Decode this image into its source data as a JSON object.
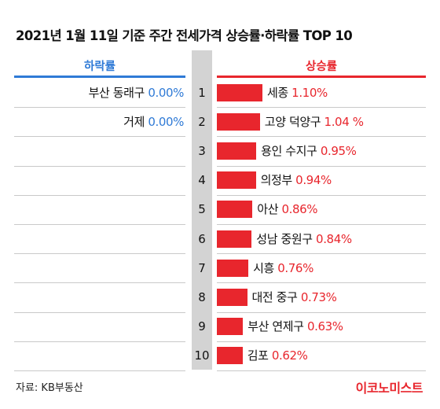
{
  "header": {
    "title": "2021년 1월 11일 기준 주간 전세가격 상승률·하락률 TOP 10"
  },
  "columns": {
    "left_header": "하락률",
    "right_header": "상승률"
  },
  "footer": {
    "source": "자료: KB부동산",
    "brand": "이코노미스트"
  },
  "colors": {
    "rise": "#e8262d",
    "fall": "#2f7ad6",
    "rank_band": "#d3d3d3"
  },
  "chart_data": {
    "type": "bar",
    "title": "2021년 1월 11일 기준 주간 전세가격 상승률·하락률 TOP 10",
    "ranks": [
      "1",
      "2",
      "3",
      "4",
      "5",
      "6",
      "7",
      "8",
      "9",
      "10"
    ],
    "series": [
      {
        "name": "상승률",
        "categories": [
          "세종",
          "고양 덕양구",
          "용인 수지구",
          "의정부",
          "아산",
          "성남 중원구",
          "시흥",
          "대전 중구",
          "부산 연제구",
          "김포"
        ],
        "values": [
          1.1,
          1.04,
          0.95,
          0.94,
          0.86,
          0.84,
          0.76,
          0.73,
          0.63,
          0.62
        ],
        "labels": [
          "1.10%",
          "1.04 %",
          "0.95%",
          "0.94%",
          "0.86%",
          "0.84%",
          "0.76%",
          "0.73%",
          "0.63%",
          "0.62%"
        ]
      },
      {
        "name": "하락률",
        "categories": [
          "부산 동래구",
          "거제"
        ],
        "values": [
          0.0,
          0.0
        ],
        "labels": [
          "0.00%",
          "0.00%"
        ]
      }
    ]
  }
}
